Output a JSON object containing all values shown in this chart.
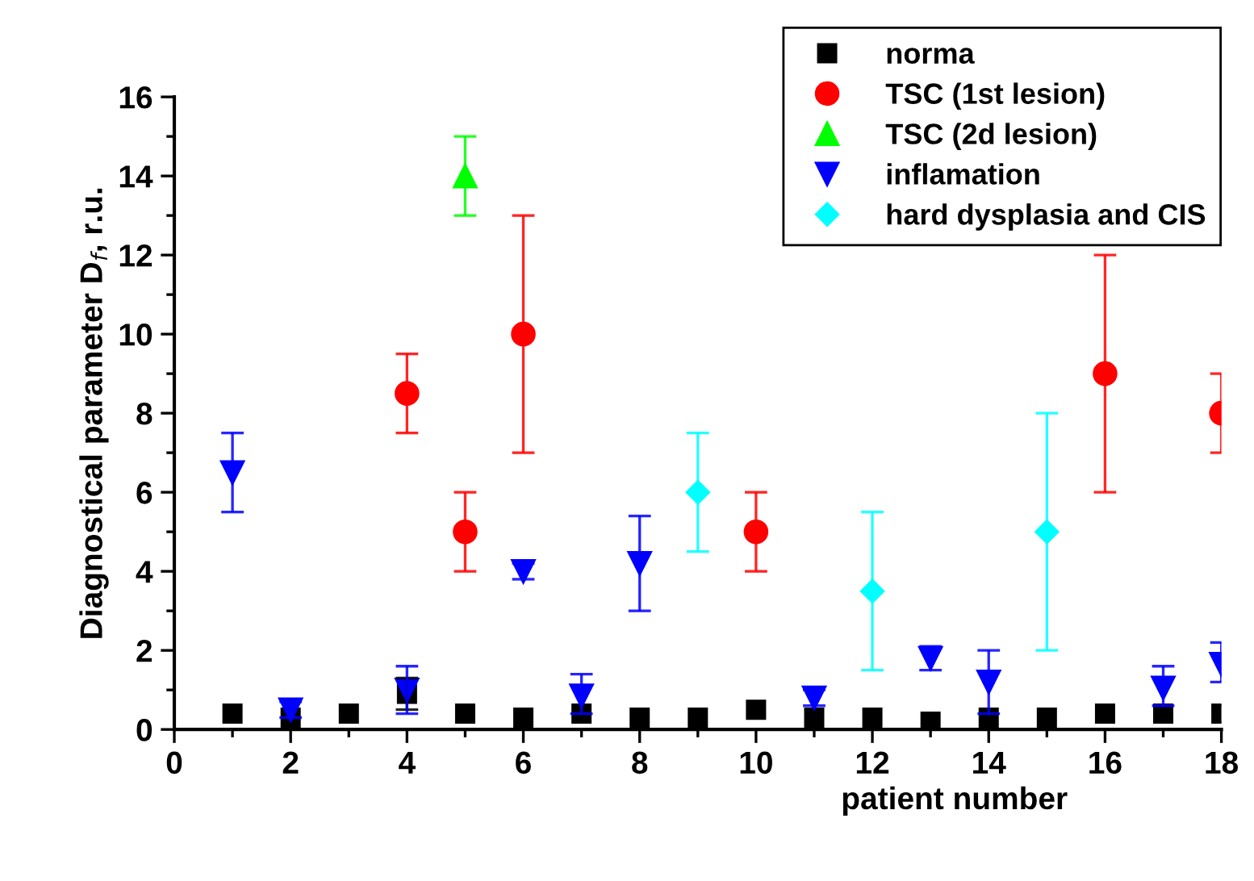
{
  "chart_data": {
    "type": "scatter",
    "xlabel": "patient number",
    "ylabel": "Diagnostical parameter D$_{f}$, r.u.",
    "xlim": [
      0,
      18
    ],
    "xticks": [
      0,
      2,
      4,
      6,
      8,
      10,
      12,
      14,
      16,
      18
    ],
    "ylim": [
      0,
      16
    ],
    "yticks": [
      0,
      2,
      4,
      6,
      8,
      10,
      12,
      14,
      16
    ],
    "grid": false,
    "legend": "top right",
    "series": [
      {
        "name": "norma",
        "color": "#000000",
        "marker": "square",
        "x": [
          1,
          2,
          3,
          4,
          5,
          6,
          7,
          8,
          9,
          10,
          11,
          12,
          13,
          14,
          15,
          16,
          17,
          18
        ],
        "values": [
          0.4,
          0.3,
          0.4,
          0.9,
          0.4,
          0.3,
          0.4,
          0.3,
          0.3,
          0.5,
          0.3,
          0.3,
          0.2,
          0.3,
          0.3,
          0.4,
          0.4,
          0.4
        ],
        "errors": [
          null,
          null,
          null,
          [
            0.5,
            1.3
          ],
          null,
          null,
          null,
          null,
          null,
          null,
          null,
          null,
          null,
          null,
          null,
          null,
          null,
          null
        ]
      },
      {
        "name": "TSC (1st lesion)",
        "color": "#ff0000",
        "marker": "circle",
        "x": [
          4,
          5,
          6,
          10,
          16,
          18
        ],
        "values": [
          8.5,
          5,
          10,
          5,
          9,
          8
        ],
        "errors": [
          [
            7.5,
            9.5
          ],
          [
            4,
            6
          ],
          [
            7,
            13
          ],
          [
            4,
            6
          ],
          [
            6,
            12
          ],
          [
            7,
            9
          ]
        ]
      },
      {
        "name": "TSC (2d lesion)",
        "color": "#00ff00",
        "marker": "triangle",
        "x": [
          5
        ],
        "values": [
          14
        ],
        "errors": [
          [
            13,
            15
          ]
        ]
      },
      {
        "name": "inflamation",
        "color": "#0000ff",
        "marker": "triangle_down",
        "x": [
          1,
          2,
          4,
          6,
          7,
          8,
          11,
          13,
          14,
          17,
          18
        ],
        "values": [
          6.5,
          0.5,
          1.0,
          4.0,
          0.85,
          4.2,
          0.8,
          1.8,
          1.2,
          1.05,
          1.65
        ],
        "errors": [
          [
            5.5,
            7.5
          ],
          [
            0.3,
            0.7
          ],
          [
            0.4,
            1.6
          ],
          [
            3.8,
            4.2
          ],
          [
            0.4,
            1.4
          ],
          [
            3.0,
            5.4
          ],
          [
            0.6,
            1.0
          ],
          [
            1.5,
            2.1
          ],
          [
            0.4,
            2.0
          ],
          [
            0.6,
            1.6
          ],
          [
            1.2,
            2.2
          ]
        ]
      },
      {
        "name": "hard dysplasia and CIS",
        "color": "#00ffff",
        "marker": "diamond",
        "x": [
          9,
          12,
          15
        ],
        "values": [
          6,
          3.5,
          5
        ],
        "errors": [
          [
            4.5,
            7.5
          ],
          [
            1.5,
            5.5
          ],
          [
            2,
            8
          ]
        ]
      }
    ]
  }
}
